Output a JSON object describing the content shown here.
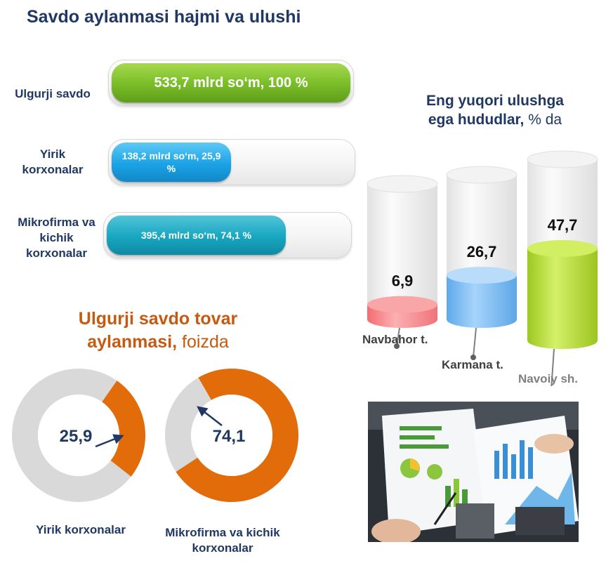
{
  "header": {
    "title": "Savdo aylanmasi hajmi va ulushi"
  },
  "volume_bars": [
    {
      "label": "Ulgurji savdo",
      "value_text": "533,7 mlrd so‘m, 100 %",
      "share": 100
    },
    {
      "label": "Yirik korxonalar",
      "value_text": "138,2 mlrd so‘m, 25,9 %",
      "share": 25.9
    },
    {
      "label": "Mikrofirma va kichik korxonalar",
      "value_text": "395,4 mlrd so‘m, 74,1 %",
      "share": 74.1
    }
  ],
  "regions": {
    "title_line1": "Eng yuqori ulushga",
    "title_line2_bold": "ega hududlar,",
    "title_line2_light": "% da"
  },
  "donuts": {
    "title_line1": "Ulgurji savdo tovar",
    "title_line2_bold": "aylanmasi,",
    "title_line2_light": "foizda"
  },
  "colors": {
    "title_blue": "#1f3864",
    "accent_orange": "#e36c0a",
    "ring_grey": "#d9d9d9",
    "bar_green": "#7cbf2a",
    "bar_blue": "#1ba3e6",
    "bar_teal": "#17a6c0",
    "cyl_red": "#f4797c",
    "cyl_blue": "#7fbff2",
    "cyl_green": "#b5dc2f"
  },
  "chart_data": [
    {
      "type": "bar",
      "orientation": "horizontal",
      "categories": [
        "Ulgurji savdo",
        "Yirik korxonalar",
        "Mikrofirma va kichik korxonalar"
      ],
      "values": [
        533.7,
        138.2,
        395.4
      ],
      "shares": [
        100,
        25.9,
        74.1
      ],
      "title": "Savdo aylanmasi hajmi va ulushi"
    },
    {
      "type": "bar",
      "title": "Eng yuqori ulushga ega hududlar, % da",
      "categories": [
        "Navbahor t.",
        "Karmana t.",
        "Navoiy sh."
      ],
      "values": [
        6.9,
        26.7,
        47.7
      ],
      "value_labels": [
        "6,9",
        "26,7",
        "47,7"
      ],
      "ylim": [
        0,
        100
      ]
    },
    {
      "type": "pie",
      "style": "donut",
      "title": "Ulgurji savdo tovar aylanmasi, foizda",
      "value": 25.9,
      "value_label": "25,9",
      "caption": "Yirik korxonalar"
    },
    {
      "type": "pie",
      "style": "donut",
      "title": "Ulgurji savdo tovar aylanmasi, foizda",
      "value": 74.1,
      "value_label": "74,1",
      "caption": "Mikrofirma va kichik korxonalar"
    }
  ]
}
